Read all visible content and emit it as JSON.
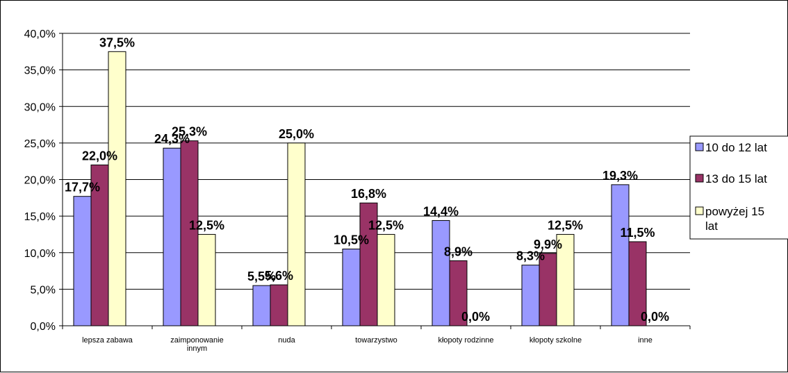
{
  "chart_data": {
    "type": "bar",
    "categories": [
      "lepsza zabawa",
      "zaimponowanie innym",
      "nuda",
      "towarzystwo",
      "kłopoty rodzinne",
      "kłopoty szkolne",
      "inne"
    ],
    "category_lines": [
      [
        "lepsza zabawa"
      ],
      [
        "zaimponowanie",
        "innym"
      ],
      [
        "nuda"
      ],
      [
        "towarzystwo"
      ],
      [
        "kłopoty rodzinne"
      ],
      [
        "kłopoty szkolne"
      ],
      [
        "inne"
      ]
    ],
    "series": [
      {
        "name": "10 do 12 lat",
        "name_lines": [
          "10 do 12 lat"
        ],
        "color": "#9999FF",
        "values": [
          17.7,
          24.3,
          5.5,
          10.5,
          14.4,
          8.3,
          19.3
        ],
        "labels": [
          "17,7%",
          "24,3%",
          "5,5%",
          "10,5%",
          "14,4%",
          "8,3%",
          "19,3%"
        ]
      },
      {
        "name": "13 do 15 lat",
        "name_lines": [
          "13 do 15 lat"
        ],
        "color": "#993366",
        "values": [
          22.0,
          25.3,
          5.6,
          16.8,
          8.9,
          9.9,
          11.5
        ],
        "labels": [
          "22,0%",
          "25,3%",
          "5,6%",
          "16,8%",
          "8,9%",
          "9,9%",
          "11,5%"
        ]
      },
      {
        "name": "powyżej 15 lat",
        "name_lines": [
          "powyżej 15",
          "lat"
        ],
        "color": "#FFFFCC",
        "values": [
          37.5,
          12.5,
          25.0,
          12.5,
          0.0,
          12.5,
          0.0
        ],
        "labels": [
          "37,5%",
          "12,5%",
          "25,0%",
          "12,5%",
          "0,0%",
          "12,5%",
          "0,0%"
        ]
      }
    ],
    "yticks": [
      "0,0%",
      "5,0%",
      "10,0%",
      "15,0%",
      "20,0%",
      "25,0%",
      "30,0%",
      "35,0%",
      "40,0%"
    ],
    "ylim": [
      0,
      40
    ],
    "ylabel": "",
    "xlabel": "",
    "grid": true,
    "legend_position": "right"
  }
}
